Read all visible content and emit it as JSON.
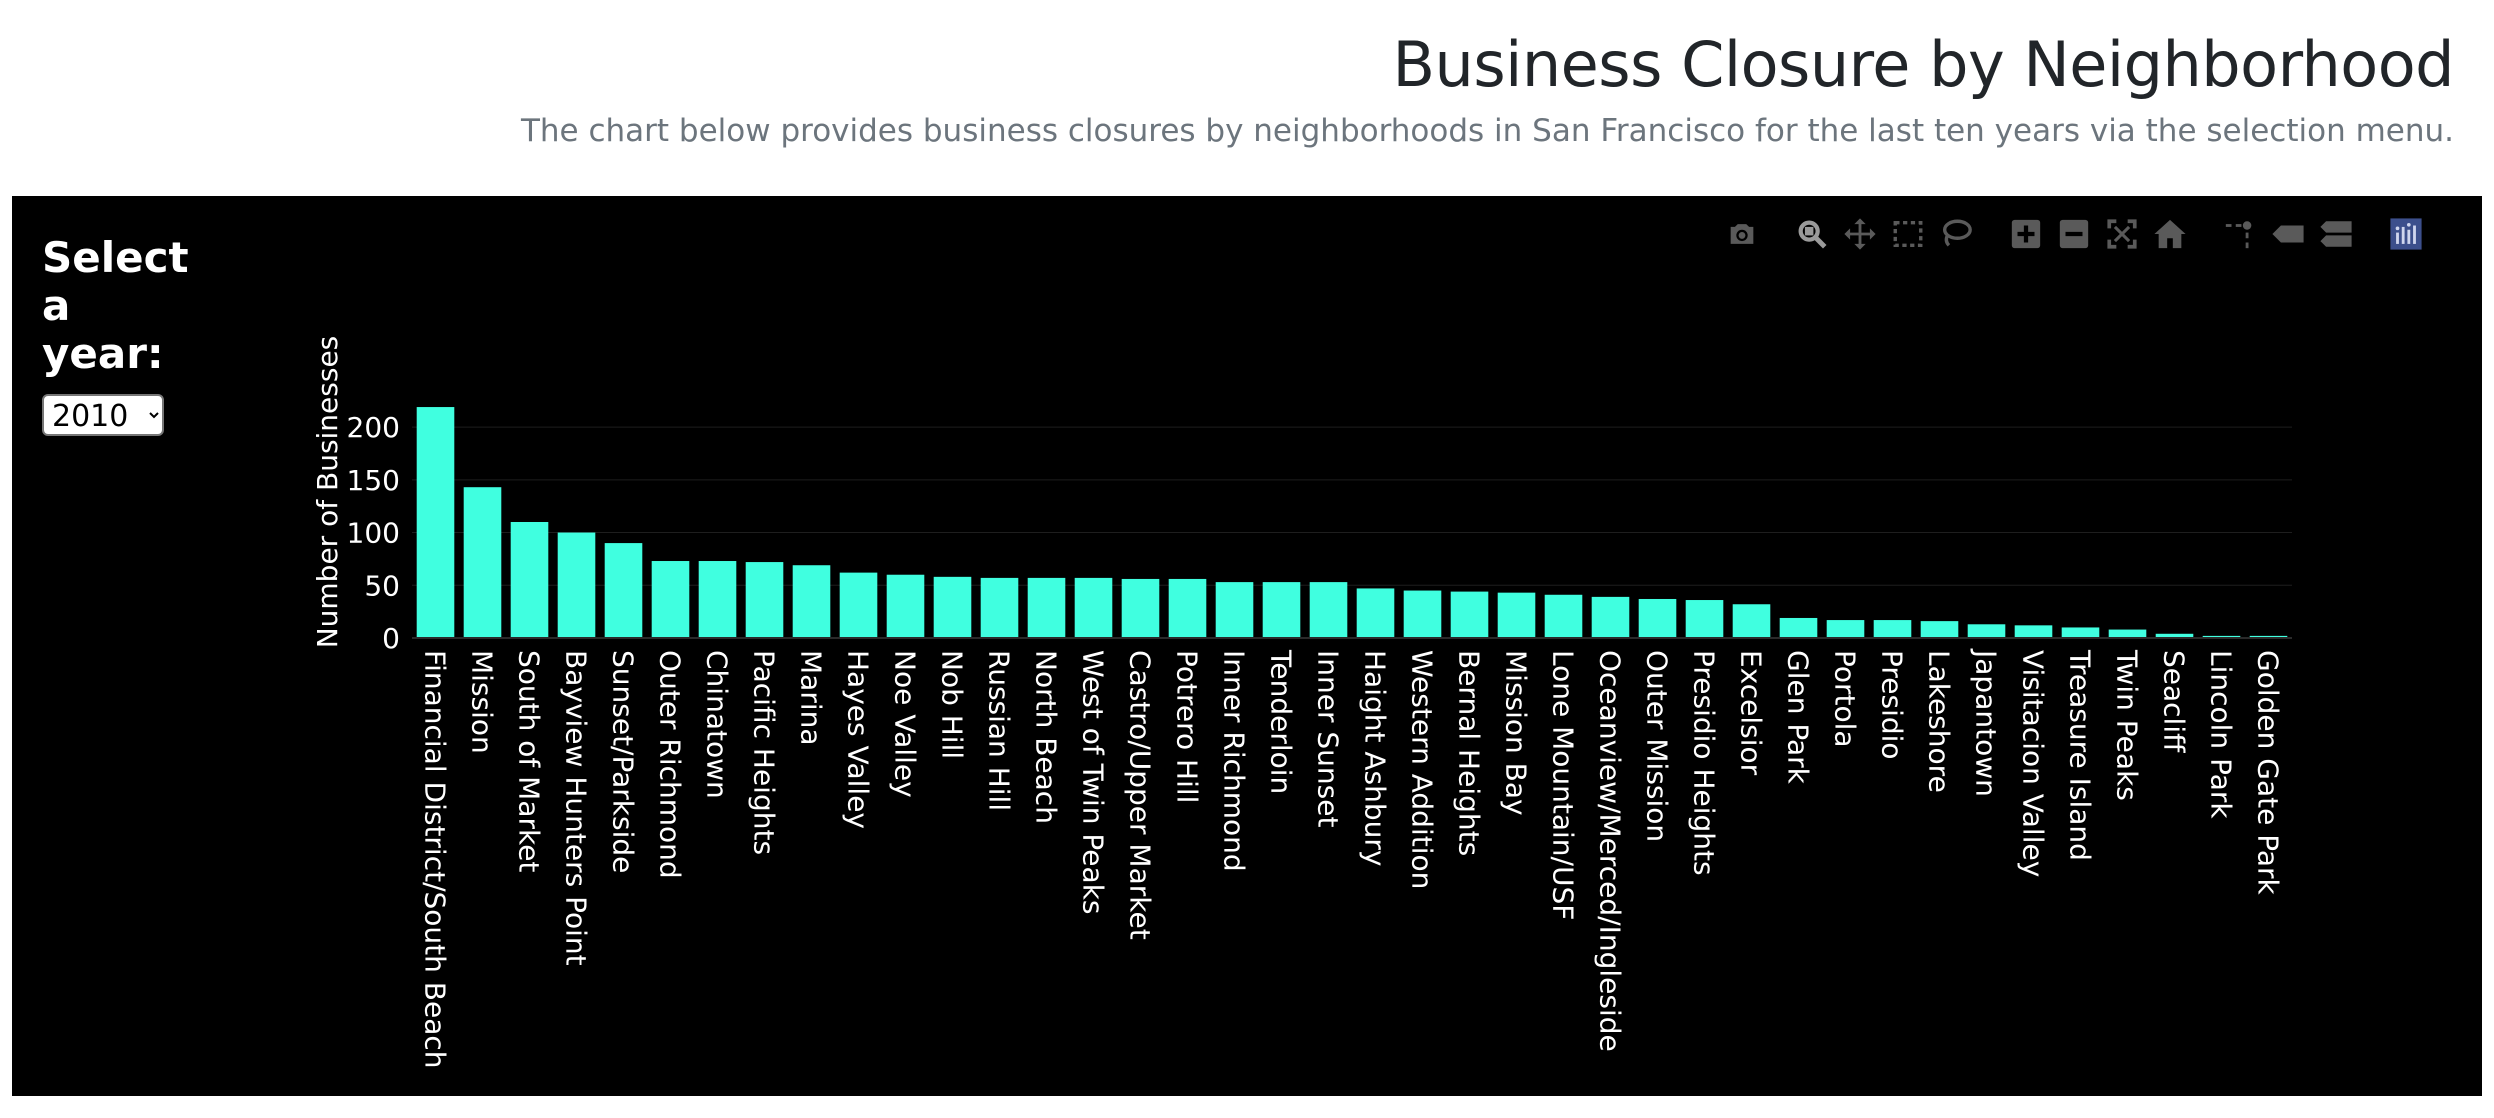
{
  "header": {
    "title": "Business Closure by Neighborhood",
    "subtitle": "The chart below provides business closures by neighborhoods in San Francisco for the last ten years via the selection menu."
  },
  "controls": {
    "select_label": "Select a year:",
    "year_selected": "2010"
  },
  "modebar": {
    "icons": [
      "camera-icon",
      "zoom-icon",
      "pan-icon",
      "box-select-icon",
      "lasso-icon",
      "zoom-in-icon",
      "zoom-out-icon",
      "autoscale-icon",
      "reset-axes-icon",
      "spike-lines-icon",
      "hover-closest-icon",
      "hover-compare-icon",
      "plotly-logo-icon"
    ]
  },
  "colors": {
    "bar": "#40ffe0",
    "background": "#000000",
    "text": "#ffffff",
    "modebar_icon": "#5a5a5a",
    "modebar_active": "#9a9a9a",
    "logo": "#3c4f8c"
  },
  "chart_data": {
    "type": "bar",
    "ylabel": "Number of Businesses",
    "xlabel": "",
    "ylim": [
      0,
      220
    ],
    "yticks": [
      0,
      50,
      100,
      150,
      200
    ],
    "grid": true,
    "categories": [
      "Financial District/South Beach",
      "Mission",
      "South of Market",
      "Bayview Hunters Point",
      "Sunset/Parkside",
      "Outer Richmond",
      "Chinatown",
      "Pacific Heights",
      "Marina",
      "Hayes Valley",
      "Noe Valley",
      "Nob Hill",
      "Russian Hill",
      "North Beach",
      "West of Twin Peaks",
      "Castro/Upper Market",
      "Potrero Hill",
      "Inner Richmond",
      "Tenderloin",
      "Inner Sunset",
      "Haight Ashbury",
      "Western Addition",
      "Bernal Heights",
      "Mission Bay",
      "Lone Mountain/USF",
      "Oceanview/Merced/Ingleside",
      "Outer Mission",
      "Presidio Heights",
      "Excelsior",
      "Glen Park",
      "Portola",
      "Presidio",
      "Lakeshore",
      "Japantown",
      "Visitacion Valley",
      "Treasure Island",
      "Twin Peaks",
      "Seacliff",
      "Lincoln Park",
      "Golden Gate Park"
    ],
    "values": [
      219,
      143,
      110,
      100,
      90,
      73,
      73,
      72,
      69,
      62,
      60,
      58,
      57,
      57,
      57,
      56,
      56,
      53,
      53,
      53,
      47,
      45,
      44,
      43,
      41,
      39,
      37,
      36,
      32,
      19,
      17,
      17,
      16,
      13,
      12,
      10,
      8,
      4,
      2,
      2
    ]
  }
}
